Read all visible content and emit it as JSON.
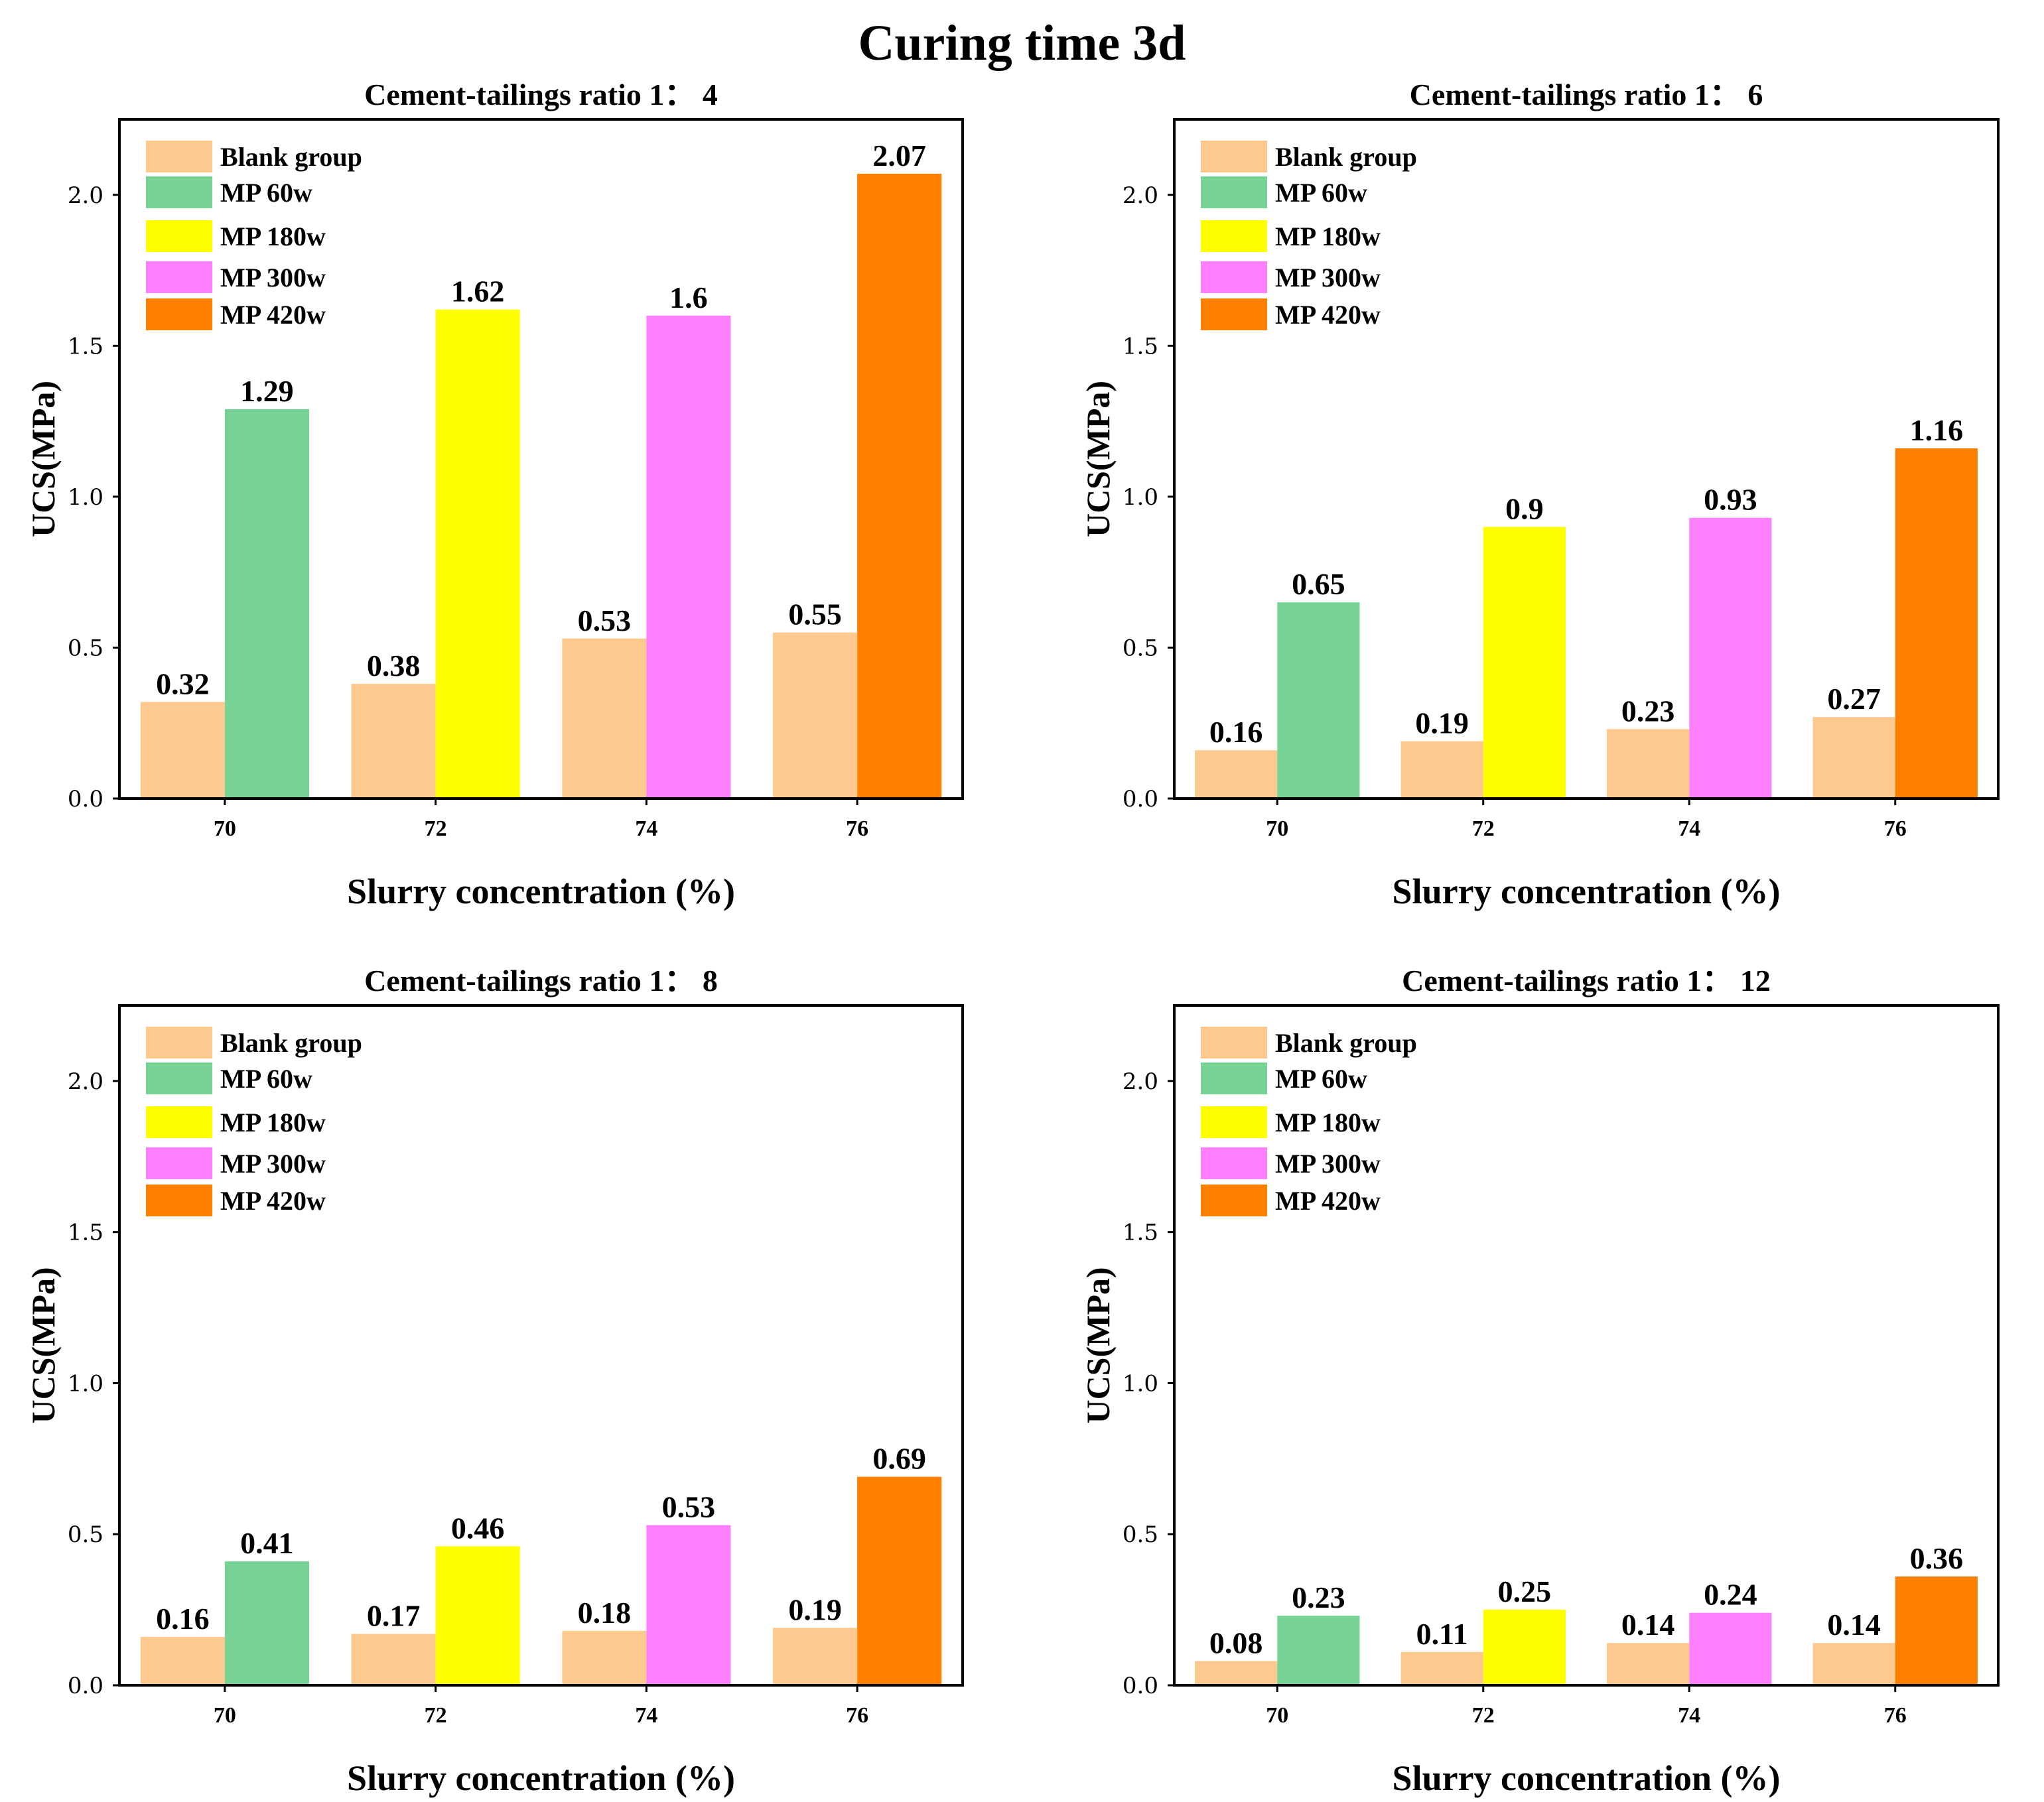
{
  "figure": {
    "title": "Curing time 3d"
  },
  "legend": {
    "entries": [
      {
        "name": "Blank group",
        "color": "#FDC98F"
      },
      {
        "name": "MP 60w",
        "color": "#77D295"
      },
      {
        "name": "MP 180w",
        "color": "#FFFF00"
      },
      {
        "name": "MP 300w",
        "color": "#FF80FF"
      },
      {
        "name": "MP 420w",
        "color": "#FF8000"
      }
    ]
  },
  "chart_data": [
    {
      "type": "bar",
      "title": "Cement-tailings ratio 1： 4",
      "xlabel": "Slurry concentration (%)",
      "ylabel": "UCS(MPa)",
      "ylim": [
        0,
        2.25
      ],
      "yticks": [
        "0.0",
        "0.5",
        "1.0",
        "1.5",
        "2.0"
      ],
      "categories": [
        "70",
        "72",
        "74",
        "76"
      ],
      "series": [
        {
          "name": "Blank group",
          "values": [
            0.32,
            0.38,
            0.53,
            0.55
          ],
          "labels": [
            "0.32",
            "0.38",
            "0.53",
            "0.55"
          ]
        },
        {
          "name": "MP",
          "values": [
            1.29,
            1.62,
            1.6,
            2.07
          ],
          "labels": [
            "1.29",
            "1.62",
            "1.6",
            "2.07"
          ],
          "colors": [
            "#77D295",
            "#FFFF00",
            "#FF80FF",
            "#FF8000"
          ]
        }
      ]
    },
    {
      "type": "bar",
      "title": "Cement-tailings ratio 1： 6",
      "xlabel": "Slurry concentration (%)",
      "ylabel": "UCS(MPa)",
      "ylim": [
        0,
        2.25
      ],
      "yticks": [
        "0.0",
        "0.5",
        "1.0",
        "1.5",
        "2.0"
      ],
      "categories": [
        "70",
        "72",
        "74",
        "76"
      ],
      "series": [
        {
          "name": "Blank group",
          "values": [
            0.16,
            0.19,
            0.23,
            0.27
          ],
          "labels": [
            "0.16",
            "0.19",
            "0.23",
            "0.27"
          ]
        },
        {
          "name": "MP",
          "values": [
            0.65,
            0.9,
            0.93,
            1.16
          ],
          "labels": [
            "0.65",
            "0.9",
            "0.93",
            "1.16"
          ],
          "colors": [
            "#77D295",
            "#FFFF00",
            "#FF80FF",
            "#FF8000"
          ]
        }
      ]
    },
    {
      "type": "bar",
      "title": "Cement-tailings ratio 1： 8",
      "xlabel": "Slurry concentration (%)",
      "ylabel": "UCS(MPa)",
      "ylim": [
        0,
        2.25
      ],
      "yticks": [
        "0.0",
        "0.5",
        "1.0",
        "1.5",
        "2.0"
      ],
      "categories": [
        "70",
        "72",
        "74",
        "76"
      ],
      "series": [
        {
          "name": "Blank group",
          "values": [
            0.16,
            0.17,
            0.18,
            0.19
          ],
          "labels": [
            "0.16",
            "0.17",
            "0.18",
            "0.19"
          ]
        },
        {
          "name": "MP",
          "values": [
            0.41,
            0.46,
            0.53,
            0.69
          ],
          "labels": [
            "0.41",
            "0.46",
            "0.53",
            "0.69"
          ],
          "colors": [
            "#77D295",
            "#FFFF00",
            "#FF80FF",
            "#FF8000"
          ]
        }
      ]
    },
    {
      "type": "bar",
      "title": "Cement-tailings ratio 1： 12",
      "xlabel": "Slurry concentration (%)",
      "ylabel": "UCS(MPa)",
      "ylim": [
        0,
        2.25
      ],
      "yticks": [
        "0.0",
        "0.5",
        "1.0",
        "1.5",
        "2.0"
      ],
      "categories": [
        "70",
        "72",
        "74",
        "76"
      ],
      "series": [
        {
          "name": "Blank group",
          "values": [
            0.08,
            0.11,
            0.14,
            0.14
          ],
          "labels": [
            "0.08",
            "0.11",
            "0.14",
            "0.14"
          ]
        },
        {
          "name": "MP",
          "values": [
            0.23,
            0.25,
            0.24,
            0.36
          ],
          "labels": [
            "0.23",
            "0.25",
            "0.24",
            "0.36"
          ],
          "colors": [
            "#77D295",
            "#FFFF00",
            "#FF80FF",
            "#FF8000"
          ]
        }
      ]
    }
  ]
}
